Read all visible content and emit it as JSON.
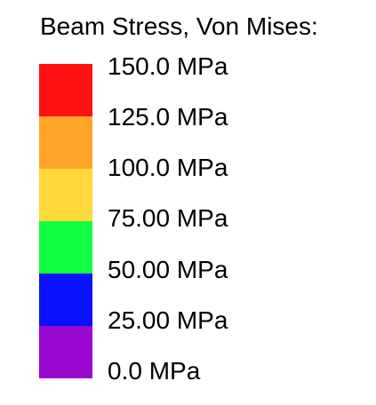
{
  "legend": {
    "title": "Beam Stress, Von Mises:",
    "bands": [
      {
        "color": "#FF1111"
      },
      {
        "color": "#FFA52A"
      },
      {
        "color": "#FFD93A"
      },
      {
        "color": "#11FF42"
      },
      {
        "color": "#0A11FF"
      },
      {
        "color": "#9A07CF"
      }
    ],
    "ticks": [
      {
        "label": "150.0 MPa"
      },
      {
        "label": "125.0 MPa"
      },
      {
        "label": "100.0 MPa"
      },
      {
        "label": "75.00 MPa"
      },
      {
        "label": "50.00 MPa"
      },
      {
        "label": "25.00 MPa"
      },
      {
        "label": "0.0 MPa"
      }
    ]
  }
}
